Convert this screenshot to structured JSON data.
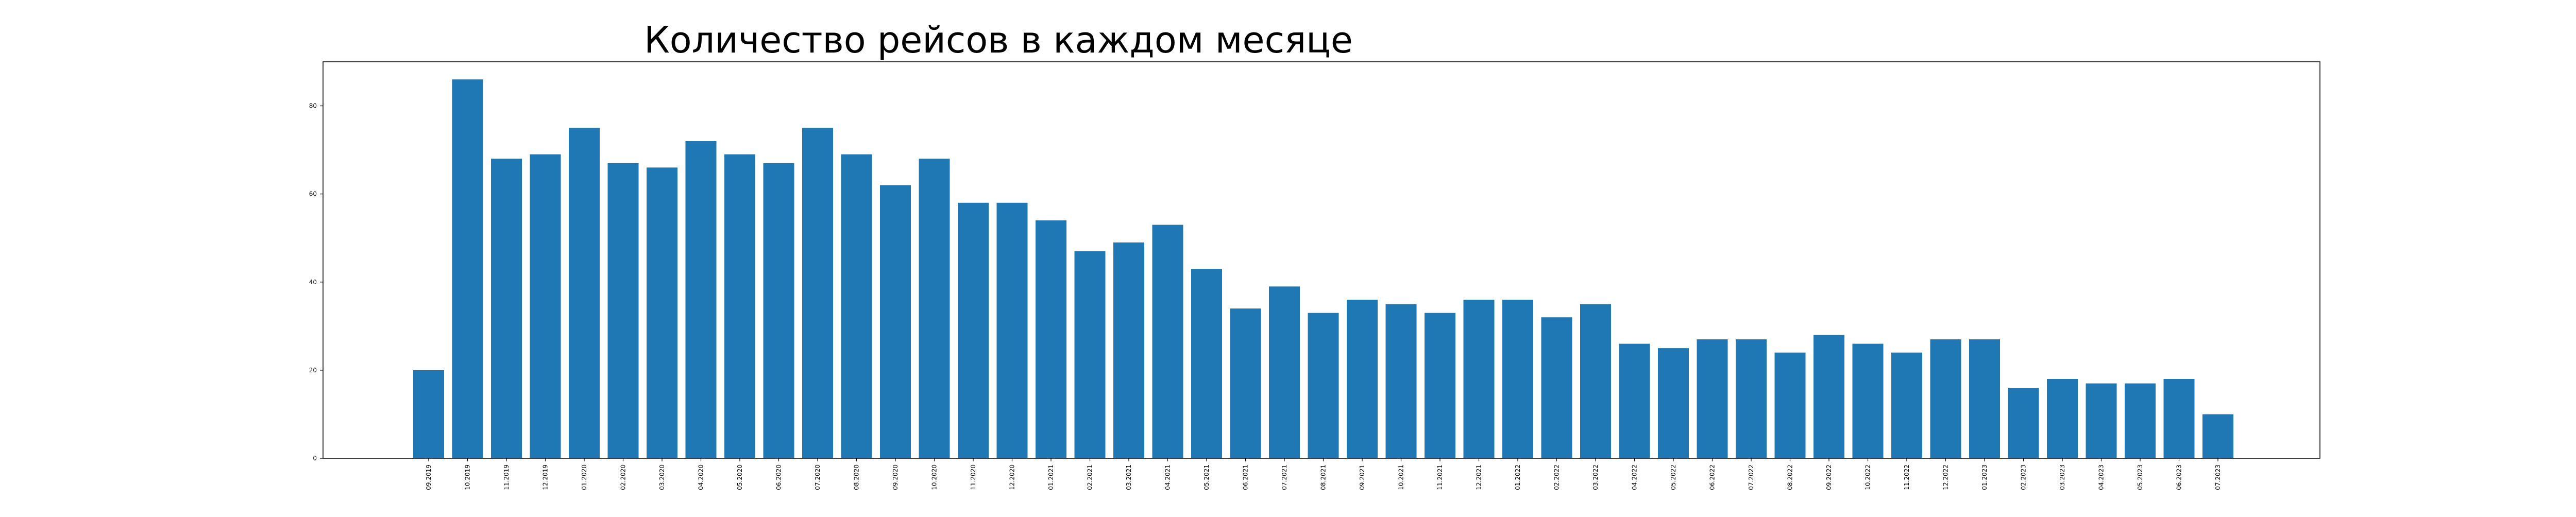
{
  "chart_data": {
    "type": "bar",
    "title": "Количество рейсов в каждом месяце",
    "xlabel": "",
    "ylabel": "",
    "bar_color": "#1f77b4",
    "grid": false,
    "ylim": [
      0,
      90
    ],
    "yticks": [
      0,
      20,
      40,
      60,
      80
    ],
    "categories": [
      "09.2019",
      "10.2019",
      "11.2019",
      "12.2019",
      "01.2020",
      "02.2020",
      "03.2020",
      "04.2020",
      "05.2020",
      "06.2020",
      "07.2020",
      "08.2020",
      "09.2020",
      "10.2020",
      "11.2020",
      "12.2020",
      "01.2021",
      "02.2021",
      "03.2021",
      "04.2021",
      "05.2021",
      "06.2021",
      "07.2021",
      "08.2021",
      "09.2021",
      "10.2021",
      "11.2021",
      "12.2021",
      "01.2022",
      "02.2022",
      "03.2022",
      "04.2022",
      "05.2022",
      "06.2022",
      "07.2022",
      "08.2022",
      "09.2022",
      "10.2022",
      "11.2022",
      "12.2022",
      "01.2023",
      "02.2023",
      "03.2023",
      "04.2023",
      "05.2023",
      "06.2023",
      "07.2023"
    ],
    "values": [
      20,
      86,
      68,
      69,
      75,
      67,
      66,
      72,
      69,
      67,
      75,
      69,
      62,
      68,
      58,
      58,
      54,
      47,
      49,
      53,
      43,
      34,
      39,
      33,
      36,
      35,
      33,
      36,
      36,
      32,
      35,
      26,
      25,
      27,
      27,
      24,
      28,
      26,
      24,
      27,
      27,
      16,
      18,
      17,
      17,
      18,
      10
    ]
  }
}
